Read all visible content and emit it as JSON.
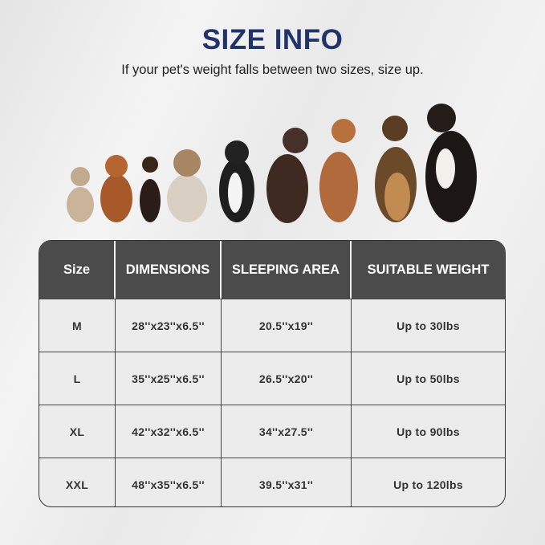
{
  "header": {
    "title": "SIZE INFO",
    "subtitle": "If your pet's weight falls between two sizes, size up."
  },
  "colors": {
    "title": "#22336a",
    "table_header": "#4b4b4b"
  },
  "table": {
    "columns": [
      "Size",
      "DIMENSIONS",
      "SLEEPING AREA",
      "SUITABLE WEIGHT"
    ],
    "rows": [
      [
        "M",
        "28''x23''x6.5''",
        "20.5''x19''",
        "Up to 30lbs"
      ],
      [
        "L",
        "35''x25''x6.5''",
        "26.5''x20''",
        "Up to 50lbs"
      ],
      [
        "XL",
        "42''x32''x6.5''",
        "34''x27.5''",
        "Up to 90lbs"
      ],
      [
        "XXL",
        "48''x35''x6.5''",
        "39.5''x31''",
        "Up to 120lbs"
      ]
    ]
  }
}
